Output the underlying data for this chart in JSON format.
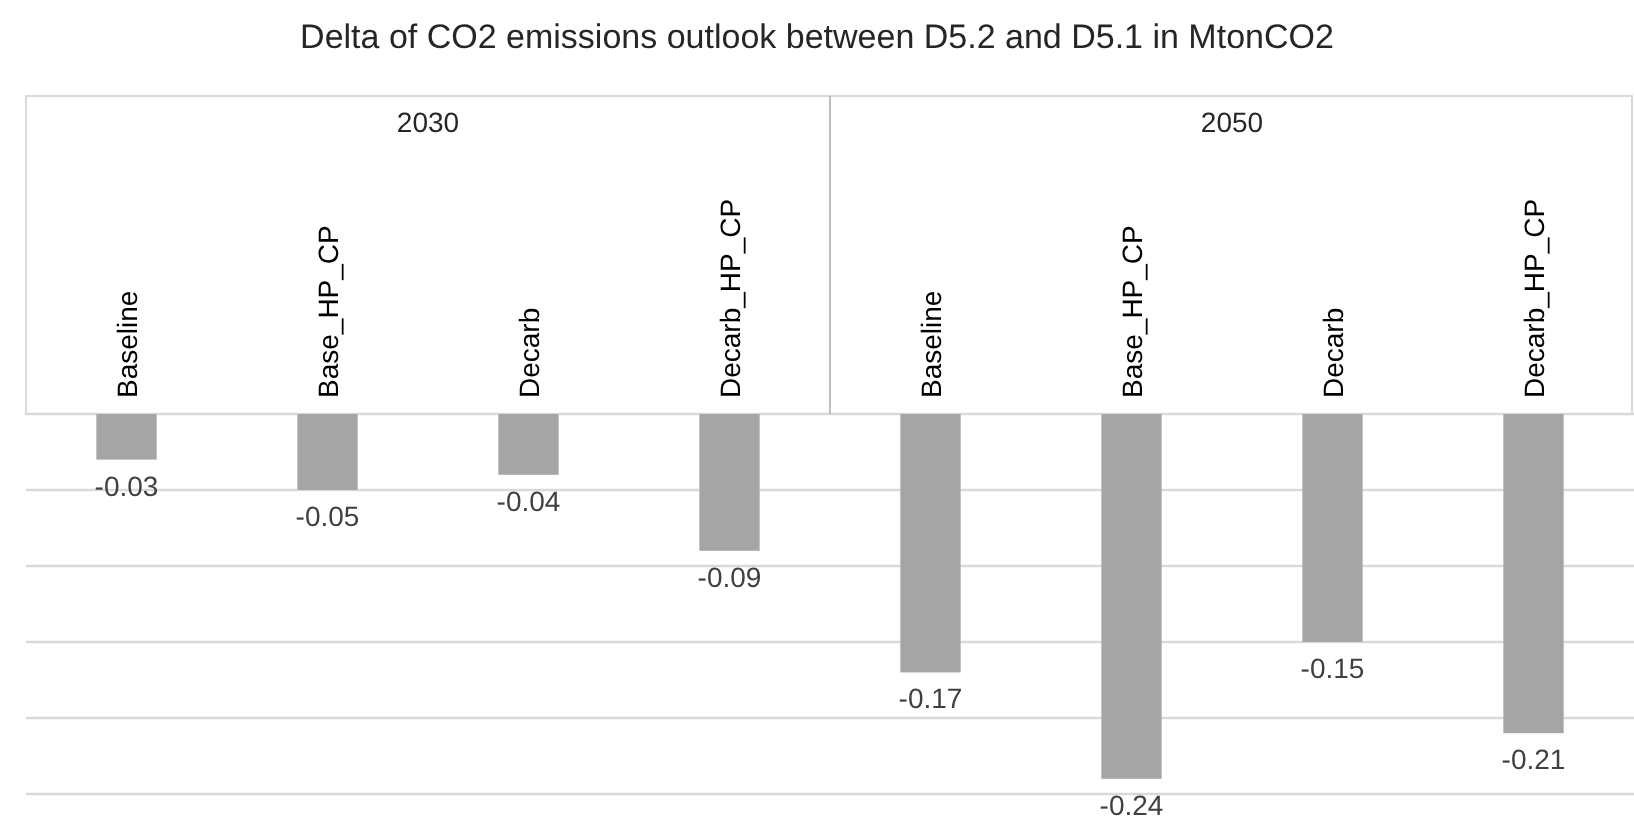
{
  "chart_data": {
    "type": "bar",
    "title": "Delta of CO2 emissions outlook between D5.2 and D5.1 in MtonCO2",
    "categories": [
      "Baseline",
      "Base_HP_CP",
      "Decarb",
      "Decarb_HP_CP",
      "Baseline",
      "Base_HP_CP",
      "Decarb",
      "Decarb_HP_CP"
    ],
    "values": [
      -0.03,
      -0.05,
      -0.04,
      -0.09,
      -0.17,
      -0.24,
      -0.15,
      -0.21
    ],
    "color": "#a5a5a5",
    "ylim": [
      -0.25,
      0
    ],
    "yticks": [
      {
        "value": 0,
        "label": null
      },
      {
        "value": -0.05,
        "label": null
      },
      {
        "value": -0.1,
        "label": null
      },
      {
        "value": -0.15,
        "label": null
      },
      {
        "value": -0.2,
        "label": null
      },
      {
        "value": -0.25,
        "label": null
      }
    ],
    "tick_labels": "x",
    "grid": "y",
    "data_labels": true,
    "annotations": [
      "2030",
      "2050"
    ]
  }
}
